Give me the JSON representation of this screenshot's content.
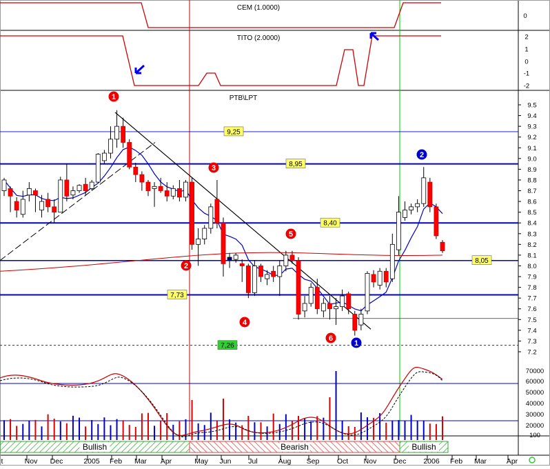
{
  "colors": {
    "up": "#ffffff",
    "down": "#ff0000",
    "trendline": "#0000cc",
    "ma": "#0000cc",
    "ma_long": "#cc0000",
    "indicator": "#cc0000",
    "label_yellow": "#ffff66",
    "label_green": "#33cc33",
    "arrow": "#0000ff"
  },
  "panels": {
    "cem": {
      "title": "CEM (1.0000)",
      "axis_ticks": [
        "0"
      ]
    },
    "tito": {
      "title": "TITO (2.0000)",
      "axis_ticks": [
        "2",
        "1",
        "0",
        "-1",
        "-2"
      ]
    },
    "price": {
      "title": "PTB\\LPT"
    },
    "volume": {
      "axis_ticks": [
        "70000",
        "60000",
        "50000",
        "40000",
        "30000",
        "20000",
        "100"
      ]
    }
  },
  "price_labels": [
    {
      "text": "9,25",
      "value": 9.25,
      "style": "yellow"
    },
    {
      "text": "8,95",
      "value": 8.95,
      "style": "yellow"
    },
    {
      "text": "8,40",
      "value": 8.4,
      "style": "yellow"
    },
    {
      "text": "8,05",
      "value": 8.05,
      "style": "yellow"
    },
    {
      "text": "7,73",
      "value": 7.73,
      "style": "yellow"
    },
    {
      "text": "7,26",
      "value": 7.26,
      "style": "green"
    }
  ],
  "wave_markers": [
    {
      "text": "1",
      "color": "red"
    },
    {
      "text": "2",
      "color": "red"
    },
    {
      "text": "3",
      "color": "red"
    },
    {
      "text": "4",
      "color": "red"
    },
    {
      "text": "5",
      "color": "red"
    },
    {
      "text": "6",
      "color": "red"
    },
    {
      "text": "1",
      "color": "blue"
    },
    {
      "text": "2",
      "color": "blue"
    }
  ],
  "sentiment_bands": [
    {
      "label": "Bullish",
      "type": "bullish"
    },
    {
      "label": "Bearish",
      "type": "bearish"
    },
    {
      "label": "Bullish",
      "type": "bullish"
    }
  ],
  "x_axis_labels": [
    "t",
    "Nov",
    "Dec",
    "2005",
    "Feb",
    "Mar",
    "Apr",
    "May",
    "Jun",
    "Jul",
    "Aug",
    "Sep",
    "Oct",
    "Nov",
    "Dec",
    "2006",
    "Feb",
    "Mar",
    "Apr"
  ],
  "chart_data": {
    "type": "candlestick",
    "title": "PTB\\LPT",
    "y_ticks": [
      "9.5",
      "9.4",
      "9.3",
      "9.2",
      "9.1",
      "9.0",
      "8.9",
      "8.8",
      "8.7",
      "8.6",
      "8.5",
      "8.4",
      "8.3",
      "8.2",
      "8.1",
      "8.0",
      "7.9",
      "7.8",
      "7.7",
      "7.6",
      "7.5",
      "7.4",
      "7.3",
      "7.2"
    ],
    "ylim": [
      7.15,
      9.6
    ],
    "horizontal_levels": [
      9.25,
      8.95,
      8.4,
      8.05,
      7.73,
      7.26
    ],
    "candles": [
      {
        "o": 8.7,
        "c": 8.8,
        "h": 8.82,
        "l": 8.65
      },
      {
        "o": 8.72,
        "c": 8.65,
        "h": 8.74,
        "l": 8.5
      },
      {
        "o": 8.6,
        "c": 8.52,
        "h": 8.64,
        "l": 8.45
      },
      {
        "o": 8.48,
        "c": 8.62,
        "h": 8.7,
        "l": 8.45
      },
      {
        "o": 8.66,
        "c": 8.72,
        "h": 8.78,
        "l": 8.6
      },
      {
        "o": 8.7,
        "c": 8.66,
        "h": 8.72,
        "l": 8.5
      },
      {
        "o": 8.52,
        "c": 8.6,
        "h": 8.66,
        "l": 8.45
      },
      {
        "o": 8.62,
        "c": 8.55,
        "h": 8.68,
        "l": 8.5
      },
      {
        "o": 8.55,
        "c": 8.5,
        "h": 8.62,
        "l": 8.4
      },
      {
        "o": 8.5,
        "c": 8.8,
        "h": 8.83,
        "l": 8.5
      },
      {
        "o": 8.8,
        "c": 8.65,
        "h": 8.95,
        "l": 8.6
      },
      {
        "o": 8.66,
        "c": 8.7,
        "h": 8.74,
        "l": 8.62
      },
      {
        "o": 8.7,
        "c": 8.75,
        "h": 8.76,
        "l": 8.68
      },
      {
        "o": 8.76,
        "c": 8.7,
        "h": 8.82,
        "l": 8.66
      },
      {
        "o": 8.72,
        "c": 8.78,
        "h": 8.8,
        "l": 8.7
      },
      {
        "o": 8.78,
        "c": 9.04,
        "h": 9.05,
        "l": 8.77
      },
      {
        "o": 8.98,
        "c": 9.05,
        "h": 9.08,
        "l": 8.95
      },
      {
        "o": 9.05,
        "c": 9.18,
        "h": 9.3,
        "l": 9.0
      },
      {
        "o": 9.18,
        "c": 9.3,
        "h": 9.45,
        "l": 9.1
      },
      {
        "o": 9.3,
        "c": 9.15,
        "h": 9.38,
        "l": 9.1
      },
      {
        "o": 9.15,
        "c": 8.92,
        "h": 9.18,
        "l": 8.9
      },
      {
        "o": 8.92,
        "c": 8.85,
        "h": 8.96,
        "l": 8.78
      },
      {
        "o": 8.85,
        "c": 8.78,
        "h": 8.88,
        "l": 8.7
      },
      {
        "o": 8.78,
        "c": 8.7,
        "h": 8.8,
        "l": 8.65
      },
      {
        "o": 8.72,
        "c": 8.74,
        "h": 8.78,
        "l": 8.55
      },
      {
        "o": 8.74,
        "c": 8.7,
        "h": 8.82,
        "l": 8.68
      },
      {
        "o": 8.7,
        "c": 8.65,
        "h": 8.78,
        "l": 8.6
      },
      {
        "o": 8.65,
        "c": 8.72,
        "h": 8.75,
        "l": 8.62
      },
      {
        "o": 8.72,
        "c": 8.64,
        "h": 8.8,
        "l": 8.6
      },
      {
        "o": 8.64,
        "c": 8.78,
        "h": 8.8,
        "l": 8.6
      },
      {
        "o": 8.78,
        "c": 8.2,
        "h": 8.82,
        "l": 8.15
      },
      {
        "o": 8.2,
        "c": 8.25,
        "h": 8.35,
        "l": 8.0
      },
      {
        "o": 8.25,
        "c": 8.35,
        "h": 8.38,
        "l": 8.2
      },
      {
        "o": 8.35,
        "c": 8.55,
        "h": 8.58,
        "l": 8.3
      },
      {
        "o": 8.62,
        "c": 8.4,
        "h": 8.8,
        "l": 8.35
      },
      {
        "o": 8.4,
        "c": 8.02,
        "h": 8.45,
        "l": 7.9
      },
      {
        "o": 8.05,
        "c": 8.08,
        "h": 8.12,
        "l": 7.98
      },
      {
        "o": 8.06,
        "c": 8.1,
        "h": 8.12,
        "l": 8.03
      },
      {
        "o": 8.02,
        "c": 8.0,
        "h": 8.06,
        "l": 7.85
      },
      {
        "o": 8.0,
        "c": 7.75,
        "h": 8.02,
        "l": 7.7
      },
      {
        "o": 7.75,
        "c": 8.0,
        "h": 8.05,
        "l": 7.72
      },
      {
        "o": 8.0,
        "c": 7.9,
        "h": 8.02,
        "l": 7.85
      },
      {
        "o": 7.88,
        "c": 7.92,
        "h": 7.96,
        "l": 7.82
      },
      {
        "o": 7.95,
        "c": 7.9,
        "h": 8.0,
        "l": 7.85
      },
      {
        "o": 7.9,
        "c": 8.0,
        "h": 8.05,
        "l": 7.72
      },
      {
        "o": 8.0,
        "c": 8.1,
        "h": 8.14,
        "l": 7.95
      },
      {
        "o": 8.1,
        "c": 8.05,
        "h": 8.14,
        "l": 8.02
      },
      {
        "o": 8.05,
        "c": 7.55,
        "h": 8.08,
        "l": 7.5
      },
      {
        "o": 7.58,
        "c": 7.65,
        "h": 7.72,
        "l": 7.52
      },
      {
        "o": 7.65,
        "c": 7.8,
        "h": 7.84,
        "l": 7.62
      },
      {
        "o": 7.8,
        "c": 7.6,
        "h": 7.88,
        "l": 7.55
      },
      {
        "o": 7.58,
        "c": 7.65,
        "h": 7.7,
        "l": 7.52
      },
      {
        "o": 7.65,
        "c": 7.6,
        "h": 7.72,
        "l": 7.5
      },
      {
        "o": 7.6,
        "c": 7.62,
        "h": 7.7,
        "l": 7.45
      },
      {
        "o": 7.62,
        "c": 7.72,
        "h": 7.78,
        "l": 7.58
      },
      {
        "o": 7.74,
        "c": 7.6,
        "h": 7.76,
        "l": 7.55
      },
      {
        "o": 7.55,
        "c": 7.4,
        "h": 7.58,
        "l": 7.35
      },
      {
        "o": 7.45,
        "c": 7.55,
        "h": 7.6,
        "l": 7.4
      },
      {
        "o": 7.58,
        "c": 7.93,
        "h": 7.95,
        "l": 7.55
      },
      {
        "o": 7.92,
        "c": 7.85,
        "h": 7.96,
        "l": 7.8
      },
      {
        "o": 7.82,
        "c": 7.95,
        "h": 7.98,
        "l": 7.78
      },
      {
        "o": 7.95,
        "c": 7.85,
        "h": 7.98,
        "l": 7.8
      },
      {
        "o": 7.88,
        "c": 8.2,
        "h": 8.3,
        "l": 7.85
      },
      {
        "o": 8.15,
        "c": 8.5,
        "h": 8.65,
        "l": 8.1
      },
      {
        "o": 8.45,
        "c": 8.52,
        "h": 8.6,
        "l": 8.42
      },
      {
        "o": 8.52,
        "c": 8.55,
        "h": 8.58,
        "l": 8.48
      },
      {
        "o": 8.55,
        "c": 8.58,
        "h": 8.62,
        "l": 8.5
      },
      {
        "o": 8.58,
        "c": 8.82,
        "h": 8.92,
        "l": 8.55
      },
      {
        "o": 8.78,
        "c": 8.55,
        "h": 8.82,
        "l": 8.5
      },
      {
        "o": 8.55,
        "c": 8.28,
        "h": 8.58,
        "l": 8.25
      },
      {
        "o": 8.22,
        "c": 8.14,
        "h": 8.24,
        "l": 8.12
      }
    ],
    "highlight_candle": {
      "index": 36,
      "color": "#000080"
    }
  }
}
